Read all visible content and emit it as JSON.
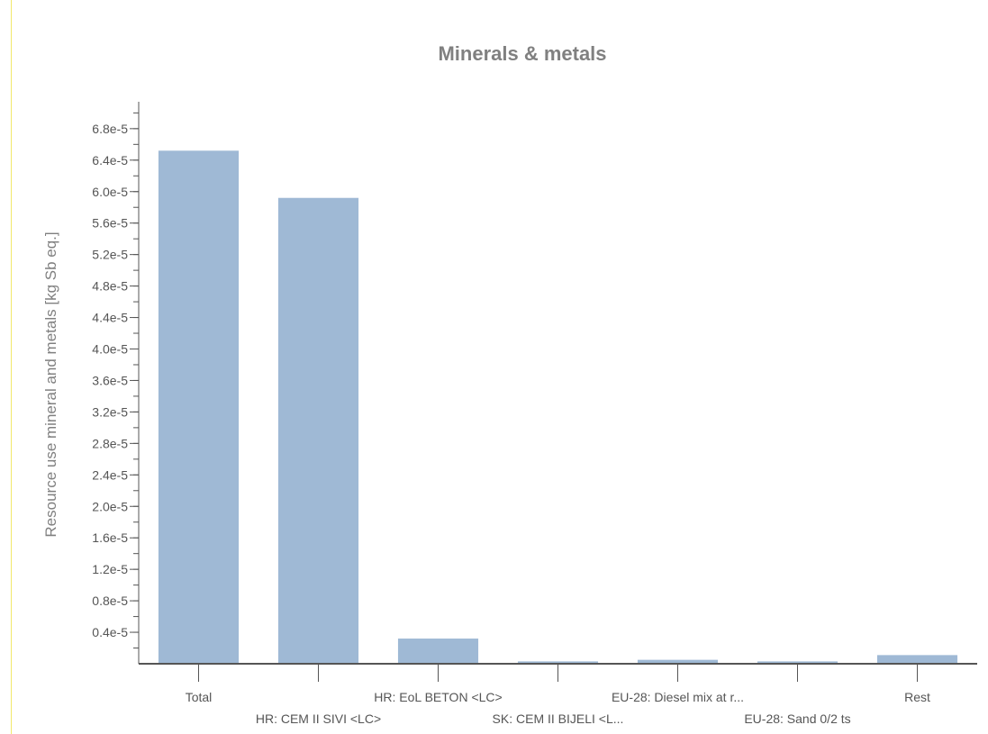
{
  "chart_data": {
    "type": "bar",
    "title": "Minerals & metals",
    "xlabel": "",
    "ylabel": "Resource use mineral and metals [kg Sb eq.]",
    "categories": [
      "Total",
      "HR: CEM II SIVI <LC>",
      "HR: EoL BETON <LC>",
      "SK: CEM II BIJELI <L...",
      "EU-28: Diesel mix at r...",
      "EU-28: Sand 0/2 ts",
      "Rest"
    ],
    "values": [
      6.52e-05,
      5.92e-05,
      3.2e-06,
      3e-07,
      5e-07,
      3e-07,
      1.1e-06
    ],
    "ylim": [
      0,
      7e-05
    ],
    "yticks": [
      {
        "value": 4e-06,
        "label": "0.4e-5"
      },
      {
        "value": 8e-06,
        "label": "0.8e-5"
      },
      {
        "value": 1.2e-05,
        "label": "1.2e-5"
      },
      {
        "value": 1.6e-05,
        "label": "1.6e-5"
      },
      {
        "value": 2e-05,
        "label": "2.0e-5"
      },
      {
        "value": 2.4e-05,
        "label": "2.4e-5"
      },
      {
        "value": 2.8e-05,
        "label": "2.8e-5"
      },
      {
        "value": 3.2e-05,
        "label": "3.2e-5"
      },
      {
        "value": 3.6e-05,
        "label": "3.6e-5"
      },
      {
        "value": 4e-05,
        "label": "4.0e-5"
      },
      {
        "value": 4.4e-05,
        "label": "4.4e-5"
      },
      {
        "value": 4.8e-05,
        "label": "4.8e-5"
      },
      {
        "value": 5.2e-05,
        "label": "5.2e-5"
      },
      {
        "value": 5.6e-05,
        "label": "5.6e-5"
      },
      {
        "value": 6e-05,
        "label": "6.0e-5"
      },
      {
        "value": 6.4e-05,
        "label": "6.4e-5"
      },
      {
        "value": 6.8e-05,
        "label": "6.8e-5"
      }
    ],
    "minor_tick_step": 2e-06,
    "grid": false,
    "bar_color": "#9fb9d5",
    "axis_color": "#555555",
    "text_color": "#808080"
  }
}
